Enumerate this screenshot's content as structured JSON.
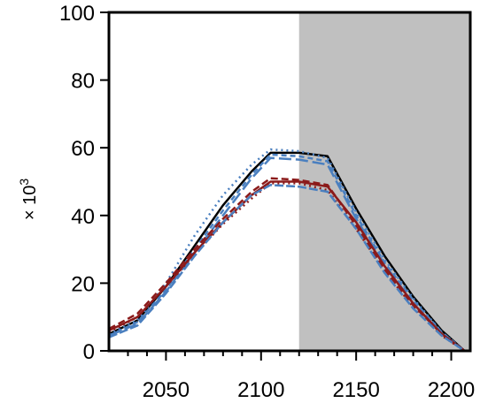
{
  "chart_data": {
    "type": "line",
    "ylabel": "× 10",
    "ylabel_exponent": "3",
    "xlim": [
      2020,
      2210
    ],
    "ylim": [
      0,
      100
    ],
    "x_ticks": [
      2050,
      2100,
      2150,
      2200
    ],
    "y_ticks": [
      0,
      20,
      40,
      60,
      80,
      100
    ],
    "grid": false,
    "shaded_region": {
      "x_start": 2120,
      "x_end": 2210,
      "color": "#c0c0c0"
    },
    "series": [
      {
        "color": "#000000",
        "dash": "solid",
        "x": [
          2020,
          2035,
          2050,
          2065,
          2080,
          2095,
          2105,
          2120,
          2135,
          2150,
          2165,
          2180,
          2195,
          2207
        ],
        "y": [
          5,
          9,
          19,
          31,
          43,
          53,
          58.5,
          58.5,
          57.5,
          42,
          28,
          16,
          6,
          0
        ]
      },
      {
        "color": "#4a7fbf",
        "dash": "6,4",
        "x": [
          2020,
          2035,
          2050,
          2065,
          2080,
          2095,
          2105,
          2120,
          2135,
          2150,
          2165,
          2180,
          2195,
          2207
        ],
        "y": [
          4.5,
          8.5,
          18,
          30,
          41.5,
          52,
          58,
          57.5,
          56,
          40,
          26,
          15,
          5.5,
          0
        ]
      },
      {
        "color": "#4a7fbf",
        "dash": "2,4",
        "x": [
          2020,
          2035,
          2050,
          2065,
          2080,
          2095,
          2105,
          2120,
          2135,
          2150,
          2165,
          2180,
          2195,
          2207
        ],
        "y": [
          5,
          9,
          20,
          34,
          46,
          55,
          59.5,
          59,
          57,
          41,
          27,
          15.5,
          5.5,
          0
        ]
      },
      {
        "color": "#4a7fbf",
        "dash": "14,5",
        "x": [
          2020,
          2035,
          2050,
          2065,
          2080,
          2095,
          2105,
          2120,
          2135,
          2150,
          2165,
          2180,
          2195,
          2207
        ],
        "y": [
          4.5,
          8,
          17.5,
          29,
          40,
          51,
          57,
          56.5,
          55,
          39,
          25.5,
          14,
          5,
          0
        ]
      },
      {
        "color": "#8b1a1a",
        "dash": "solid",
        "x": [
          2020,
          2035,
          2050,
          2065,
          2080,
          2095,
          2105,
          2120,
          2135,
          2150,
          2165,
          2180,
          2195,
          2207
        ],
        "y": [
          6,
          10,
          19,
          29,
          38,
          46,
          50,
          50,
          48.5,
          38,
          25,
          14,
          5,
          0
        ]
      },
      {
        "color": "#8b1a1a",
        "dash": "8,4",
        "x": [
          2020,
          2035,
          2050,
          2065,
          2080,
          2095,
          2105,
          2120,
          2135,
          2150,
          2165,
          2180,
          2195,
          2207
        ],
        "y": [
          6.5,
          11,
          20,
          30,
          39,
          47,
          51,
          50.5,
          49,
          37,
          24,
          13.5,
          5,
          0
        ]
      },
      {
        "color": "#8b1a1a",
        "dash": "2,4",
        "x": [
          2020,
          2035,
          2050,
          2065,
          2080,
          2095,
          2105,
          2120,
          2135,
          2150,
          2165,
          2180,
          2195,
          2207
        ],
        "y": [
          5.5,
          10,
          19,
          28.5,
          37.5,
          45,
          49.5,
          49.5,
          47.5,
          36,
          23.5,
          13,
          4.5,
          0
        ]
      },
      {
        "color": "#4a7fbf",
        "dash": "10,3",
        "x": [
          2020,
          2035,
          2050,
          2065,
          2080,
          2095,
          2105,
          2120,
          2135,
          2150,
          2165,
          2180,
          2195,
          2207
        ],
        "y": [
          4,
          7.5,
          17,
          28,
          38,
          46,
          49,
          48.5,
          47,
          36,
          23,
          12.5,
          4.5,
          0
        ]
      }
    ]
  }
}
